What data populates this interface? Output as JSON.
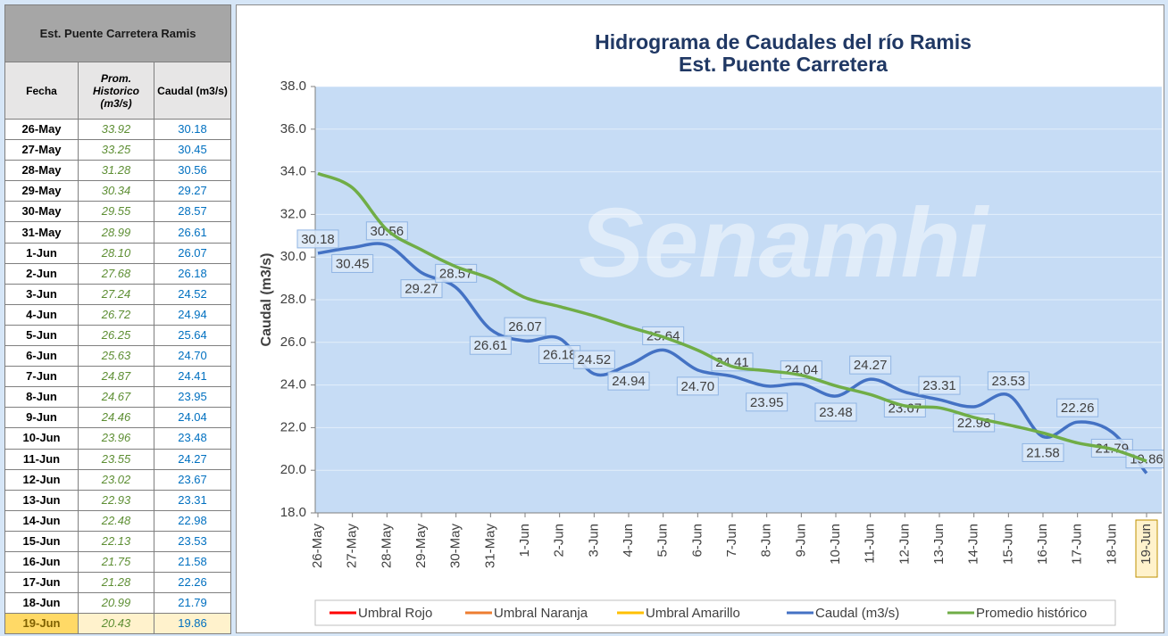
{
  "table": {
    "title": "Est. Puente Carretera Ramis",
    "headers": [
      "Fecha",
      "Prom. Historico (m3/s)",
      "Caudal (m3/s)"
    ],
    "rows": [
      [
        "26-May",
        "33.92",
        "30.18"
      ],
      [
        "27-May",
        "33.25",
        "30.45"
      ],
      [
        "28-May",
        "31.28",
        "30.56"
      ],
      [
        "29-May",
        "30.34",
        "29.27"
      ],
      [
        "30-May",
        "29.55",
        "28.57"
      ],
      [
        "31-May",
        "28.99",
        "26.61"
      ],
      [
        "1-Jun",
        "28.10",
        "26.07"
      ],
      [
        "2-Jun",
        "27.68",
        "26.18"
      ],
      [
        "3-Jun",
        "27.24",
        "24.52"
      ],
      [
        "4-Jun",
        "26.72",
        "24.94"
      ],
      [
        "5-Jun",
        "26.25",
        "25.64"
      ],
      [
        "6-Jun",
        "25.63",
        "24.70"
      ],
      [
        "7-Jun",
        "24.87",
        "24.41"
      ],
      [
        "8-Jun",
        "24.67",
        "23.95"
      ],
      [
        "9-Jun",
        "24.46",
        "24.04"
      ],
      [
        "10-Jun",
        "23.96",
        "23.48"
      ],
      [
        "11-Jun",
        "23.55",
        "24.27"
      ],
      [
        "12-Jun",
        "23.02",
        "23.67"
      ],
      [
        "13-Jun",
        "22.93",
        "23.31"
      ],
      [
        "14-Jun",
        "22.48",
        "22.98"
      ],
      [
        "15-Jun",
        "22.13",
        "23.53"
      ],
      [
        "16-Jun",
        "21.75",
        "21.58"
      ],
      [
        "17-Jun",
        "21.28",
        "22.26"
      ],
      [
        "18-Jun",
        "20.99",
        "21.79"
      ],
      [
        "19-Jun",
        "20.43",
        "19.86"
      ]
    ]
  },
  "chart_data": {
    "type": "line",
    "title": [
      "Hidrograma de Caudales del río Ramis",
      "Est. Puente Carretera"
    ],
    "watermark": "Senamhi",
    "y_label": "Caudal (m3/s)",
    "categories": [
      "26-May",
      "27-May",
      "28-May",
      "29-May",
      "30-May",
      "31-May",
      "1-Jun",
      "2-Jun",
      "3-Jun",
      "4-Jun",
      "5-Jun",
      "6-Jun",
      "7-Jun",
      "8-Jun",
      "9-Jun",
      "10-Jun",
      "11-Jun",
      "12-Jun",
      "13-Jun",
      "14-Jun",
      "15-Jun",
      "16-Jun",
      "17-Jun",
      "18-Jun",
      "19-Jun"
    ],
    "ylim": [
      18,
      38
    ],
    "yticks": [
      {
        "value": 18,
        "label": "18.0"
      },
      {
        "value": 20,
        "label": "20.0"
      },
      {
        "value": 22,
        "label": "22.0"
      },
      {
        "value": 24,
        "label": "24.0"
      },
      {
        "value": 26,
        "label": "26.0"
      },
      {
        "value": 28,
        "label": "28.0"
      },
      {
        "value": 30,
        "label": "30.0"
      },
      {
        "value": 32,
        "label": "32.0"
      },
      {
        "value": 34,
        "label": "34.0"
      },
      {
        "value": 36,
        "label": "36.0"
      },
      {
        "value": 38,
        "label": "38.0"
      }
    ],
    "grid": true,
    "legend": "bottom",
    "series": [
      {
        "name": "Umbral Rojo",
        "color": "#ff0000",
        "values": [
          null,
          null,
          null,
          null,
          null,
          null,
          null,
          null,
          null,
          null,
          null,
          null,
          null,
          null,
          null,
          null,
          null,
          null,
          null,
          null,
          null,
          null,
          null,
          null,
          null
        ]
      },
      {
        "name": "Umbral Naranja",
        "color": "#ed7d31",
        "values": [
          null,
          null,
          null,
          null,
          null,
          null,
          null,
          null,
          null,
          null,
          null,
          null,
          null,
          null,
          null,
          null,
          null,
          null,
          null,
          null,
          null,
          null,
          null,
          null,
          null
        ]
      },
      {
        "name": "Umbral Amarillo",
        "color": "#ffc000",
        "values": [
          null,
          null,
          null,
          null,
          null,
          null,
          null,
          null,
          null,
          null,
          null,
          null,
          null,
          null,
          null,
          null,
          null,
          null,
          null,
          null,
          null,
          null,
          null,
          null,
          null
        ]
      },
      {
        "name": "Caudal (m3/s)",
        "color": "#4472c4",
        "values": [
          30.18,
          30.45,
          30.56,
          29.27,
          28.57,
          26.61,
          26.07,
          26.18,
          24.52,
          24.94,
          25.64,
          24.7,
          24.41,
          23.95,
          24.04,
          23.48,
          24.27,
          23.67,
          23.31,
          22.98,
          23.53,
          21.58,
          22.26,
          21.79,
          19.86
        ],
        "value_labels": [
          "30.18",
          "30.45",
          "30.56",
          "29.27",
          "28.57",
          "26.61",
          "26.07",
          "26.18",
          "24.52",
          "24.94",
          "25.64",
          "24.70",
          "24.41",
          "23.95",
          "24.04",
          "23.48",
          "24.27",
          "23.67",
          "23.31",
          "22.98",
          "23.53",
          "21.58",
          "22.26",
          "21.79",
          "19.86"
        ]
      },
      {
        "name": "Promedio histórico",
        "color": "#70ad47",
        "values": [
          33.92,
          33.25,
          31.28,
          30.34,
          29.55,
          28.99,
          28.1,
          27.68,
          27.24,
          26.72,
          26.25,
          25.63,
          24.87,
          24.67,
          24.46,
          23.96,
          23.55,
          23.02,
          22.93,
          22.48,
          22.13,
          21.75,
          21.28,
          20.99,
          20.43
        ]
      }
    ]
  }
}
